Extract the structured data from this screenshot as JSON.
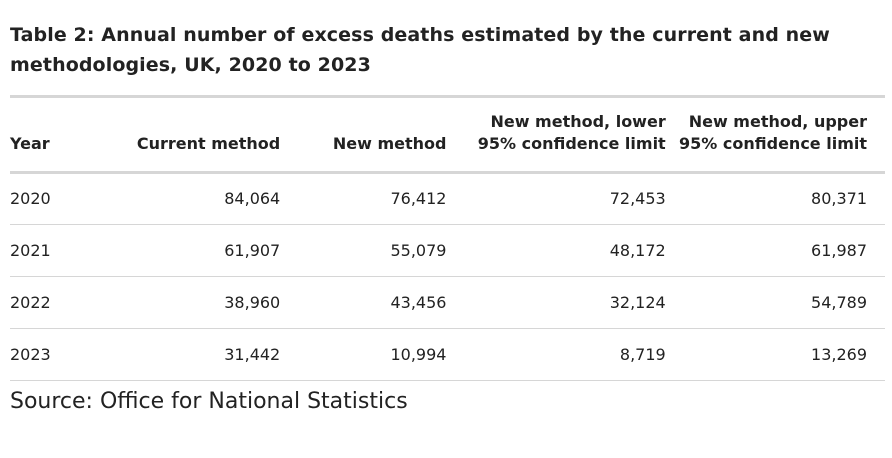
{
  "title": "Table 2: Annual number of excess deaths estimated by the current and new methodologies, UK, 2020 to 2023",
  "title_line1": "Table 2: Annual number of excess deaths estimated by the current and new",
  "title_line2": "methodologies, UK, 2020 to 2023",
  "columns": [
    {
      "label": "Year"
    },
    {
      "label": "Current method"
    },
    {
      "label": "New method"
    },
    {
      "label_line1": "New method, lower",
      "label_line2": "95% confidence limit"
    },
    {
      "label_line1": "New method, upper",
      "label_line2": "95% confidence limit"
    }
  ],
  "rows": [
    {
      "year": "2020",
      "current": "84,064",
      "new": "76,412",
      "lower": "72,453",
      "upper": "80,371"
    },
    {
      "year": "2021",
      "current": "61,907",
      "new": "55,079",
      "lower": "48,172",
      "upper": "61,987"
    },
    {
      "year": "2022",
      "current": "38,960",
      "new": "43,456",
      "lower": "32,124",
      "upper": "54,789"
    },
    {
      "year": "2023",
      "current": "31,442",
      "new": "10,994",
      "lower": "8,719",
      "upper": "13,269"
    }
  ],
  "source": "Source: Office for National Statistics"
}
